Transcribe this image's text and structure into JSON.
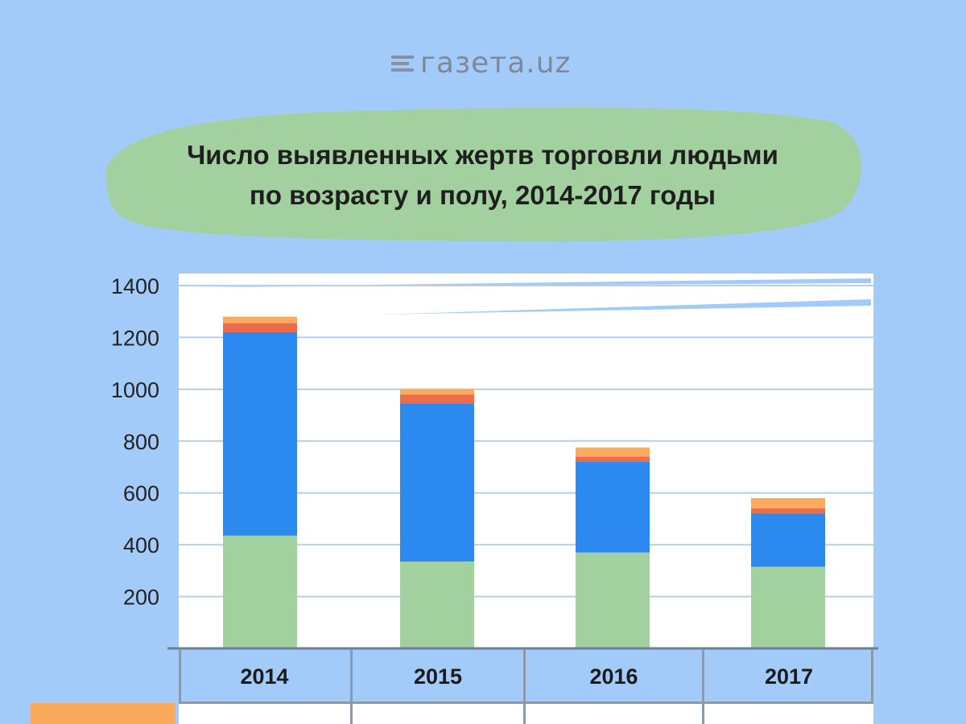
{
  "logo": {
    "text": "газета.uz"
  },
  "colors": {
    "background": "#a3cbfa",
    "plot_bg": "#ffffff",
    "grid": "#b9cfe6",
    "title_blob": "#a3d09f",
    "series_green": "#a3d09f",
    "series_blue": "#2b89f0",
    "series_red": "#ef6c4b",
    "series_orange": "#fbab5e"
  },
  "chart_data": {
    "type": "bar",
    "stacked": true,
    "title": "Число выявленных жертв торговли людьми по возрасту и полу, 2014-2017 годы",
    "title_lines": [
      "Число выявленных жертв торговли людьми",
      "по возрасту и полу, 2014-2017 годы"
    ],
    "categories": [
      "2014",
      "2015",
      "2016",
      "2017"
    ],
    "series": [
      {
        "values": [
          435,
          335,
          370,
          315
        ]
      },
      {
        "values": [
          785,
          610,
          350,
          205
        ]
      },
      {
        "values": [
          35,
          35,
          20,
          20
        ]
      },
      {
        "values": [
          25,
          20,
          35,
          40
        ]
      }
    ],
    "ylim": [
      0,
      1400
    ],
    "yticks": [
      200,
      400,
      600,
      800,
      1000,
      1200,
      1400
    ],
    "grid": true,
    "xlabel": "",
    "ylabel": ""
  }
}
